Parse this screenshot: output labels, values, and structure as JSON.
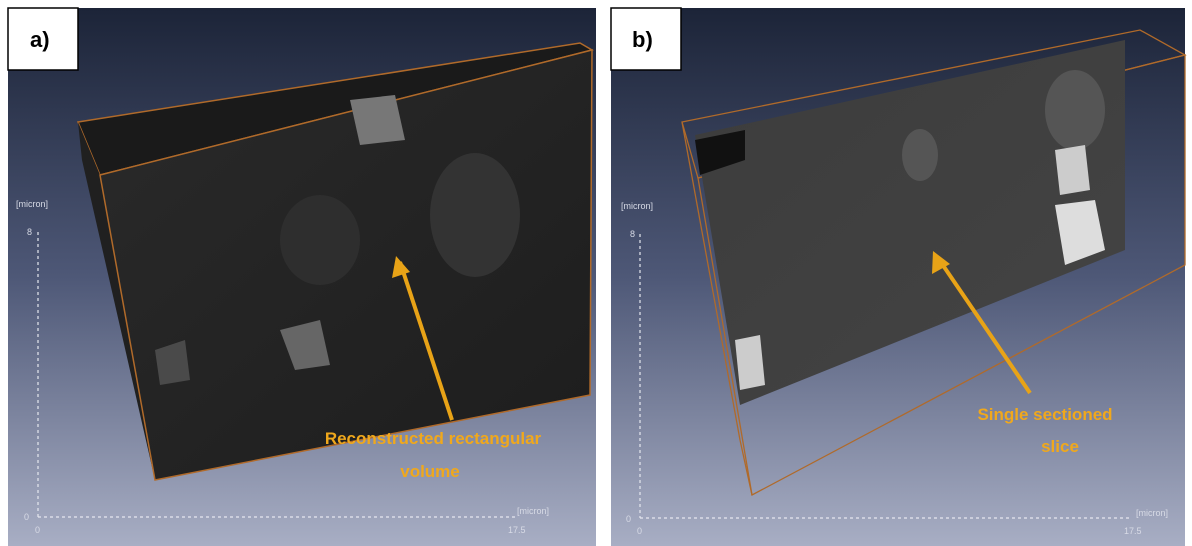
{
  "panels": [
    {
      "label": "a)",
      "y_axis_unit": "[micron]",
      "y_max": "8",
      "y_min": "0",
      "x_min": "0",
      "x_max": "17.5",
      "x_axis_unit": "[micron]",
      "annotation": [
        "Reconstructed rectangular",
        "volume"
      ]
    },
    {
      "label": "b)",
      "y_axis_unit": "[micron]",
      "y_max": "8",
      "y_min": "0",
      "x_min": "0",
      "x_max": "17.5",
      "x_axis_unit": "[micron]",
      "annotation": [
        "Single sectioned",
        "slice"
      ]
    }
  ]
}
